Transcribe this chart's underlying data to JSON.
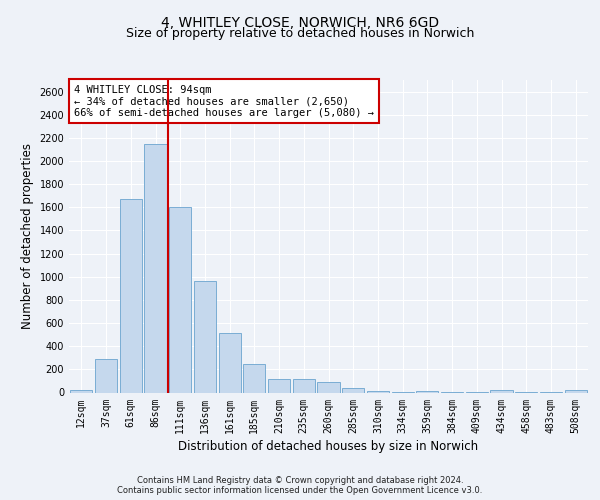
{
  "title": "4, WHITLEY CLOSE, NORWICH, NR6 6GD",
  "subtitle": "Size of property relative to detached houses in Norwich",
  "xlabel": "Distribution of detached houses by size in Norwich",
  "ylabel": "Number of detached properties",
  "categories": [
    "12sqm",
    "37sqm",
    "61sqm",
    "86sqm",
    "111sqm",
    "136sqm",
    "161sqm",
    "185sqm",
    "210sqm",
    "235sqm",
    "260sqm",
    "285sqm",
    "310sqm",
    "334sqm",
    "359sqm",
    "384sqm",
    "409sqm",
    "434sqm",
    "458sqm",
    "483sqm",
    "508sqm"
  ],
  "values": [
    20,
    290,
    1670,
    2150,
    1600,
    960,
    510,
    245,
    120,
    120,
    90,
    40,
    15,
    5,
    10,
    5,
    5,
    18,
    5,
    5,
    18
  ],
  "bar_color": "#c5d8ed",
  "bar_edge_color": "#7aadd4",
  "vline_color": "#cc0000",
  "vline_position": 3.5,
  "annotation_text": "4 WHITLEY CLOSE: 94sqm\n← 34% of detached houses are smaller (2,650)\n66% of semi-detached houses are larger (5,080) →",
  "annotation_box_facecolor": "#ffffff",
  "annotation_box_edgecolor": "#cc0000",
  "ylim": [
    0,
    2700
  ],
  "yticks": [
    0,
    200,
    400,
    600,
    800,
    1000,
    1200,
    1400,
    1600,
    1800,
    2000,
    2200,
    2400,
    2600
  ],
  "footer_line1": "Contains HM Land Registry data © Crown copyright and database right 2024.",
  "footer_line2": "Contains public sector information licensed under the Open Government Licence v3.0.",
  "bg_color": "#eef2f8",
  "plot_bg_color": "#eef2f8",
  "title_fontsize": 10,
  "subtitle_fontsize": 9,
  "axis_label_fontsize": 8.5,
  "tick_fontsize": 7,
  "annotation_fontsize": 7.5,
  "footer_fontsize": 6
}
